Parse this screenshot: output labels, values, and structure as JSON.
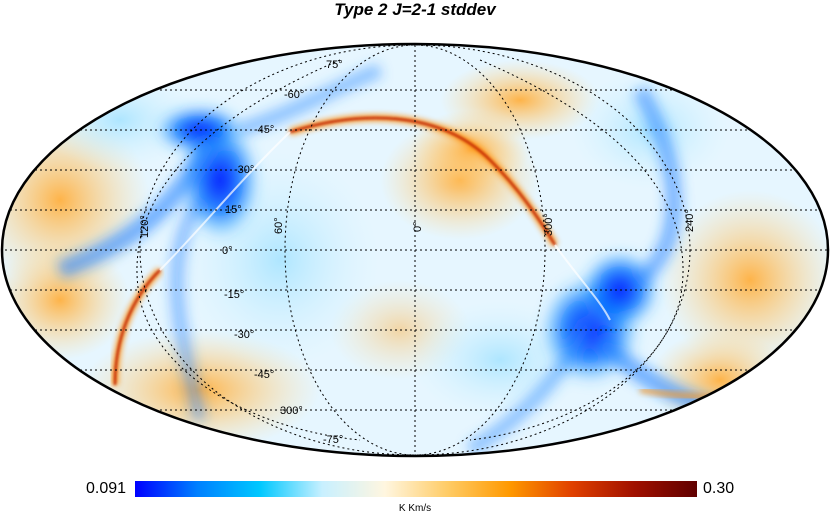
{
  "title": "Type 2 J=2-1 stddev",
  "colorbar": {
    "min_label": "0.091",
    "max_label": "0.30",
    "unit": "K Km/s",
    "stops": [
      "#0000ff",
      "#0080ff",
      "#00c8ff",
      "#c8f0ff",
      "#fff6e0",
      "#ffcc66",
      "#ff9900",
      "#e04000",
      "#a01000",
      "#600000"
    ]
  },
  "grid_labels": {
    "latitudes": [
      "75°",
      "-60°",
      "-45°",
      "-30°",
      "15°",
      "0°",
      "-15°",
      "-30°",
      "-45°",
      "-75°"
    ],
    "longitudes": [
      "120°",
      "60°",
      "0°",
      "300°",
      "240°",
      "300°"
    ]
  }
}
